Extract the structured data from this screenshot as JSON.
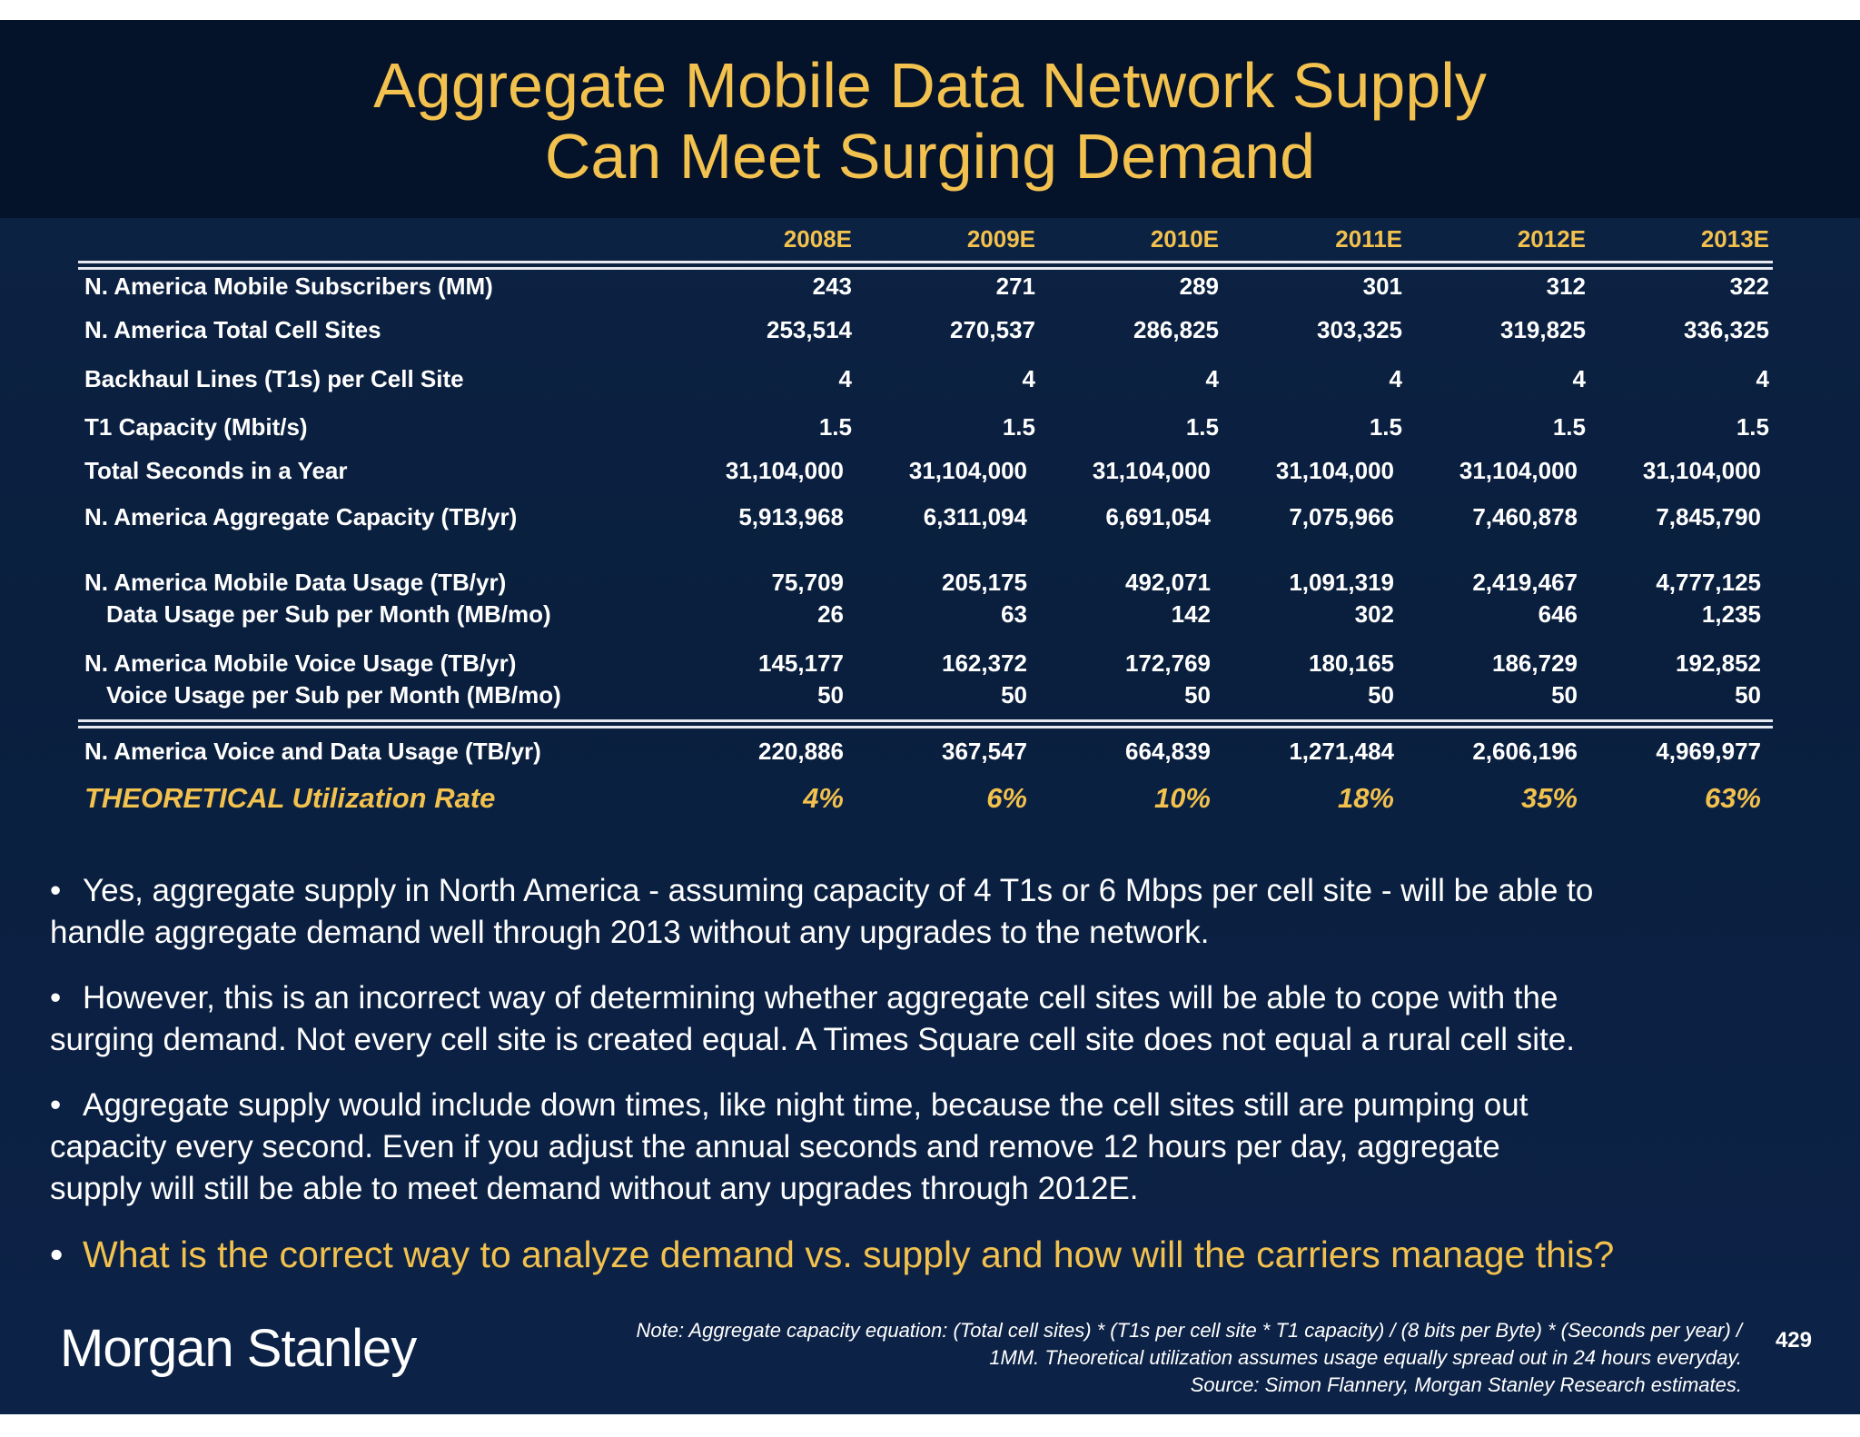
{
  "title": {
    "line1": "Aggregate Mobile Data Network Supply",
    "line2": "Can Meet Surging Demand"
  },
  "table": {
    "columns": [
      "2008E",
      "2009E",
      "2010E",
      "2011E",
      "2012E",
      "2013E"
    ],
    "rows": [
      {
        "label": "N. America Mobile Subscribers (MM)",
        "values": [
          "243",
          "271",
          "289",
          "301",
          "312",
          "322"
        ]
      },
      {
        "label": "N. America Total Cell Sites",
        "values": [
          "253,514",
          "270,537",
          "286,825",
          "303,325",
          "319,825",
          "336,325"
        ]
      },
      {
        "label": "Backhaul Lines (T1s) per Cell Site",
        "values": [
          "4",
          "4",
          "4",
          "4",
          "4",
          "4"
        ]
      },
      {
        "label": "T1 Capacity (Mbit/s)",
        "values": [
          "1.5",
          "1.5",
          "1.5",
          "1.5",
          "1.5",
          "1.5"
        ]
      },
      {
        "label": "Total Seconds in a Year",
        "values": [
          "31,104,000",
          "31,104,000",
          "31,104,000",
          "31,104,000",
          "31,104,000",
          "31,104,000"
        ]
      },
      {
        "label": "N. America Aggregate Capacity (TB/yr)",
        "values": [
          "5,913,968",
          "6,311,094",
          "6,691,054",
          "7,075,966",
          "7,460,878",
          "7,845,790"
        ]
      },
      {
        "label": "N. America Mobile Data Usage (TB/yr)",
        "values": [
          "75,709",
          "205,175",
          "492,071",
          "1,091,319",
          "2,419,467",
          "4,777,125"
        ]
      },
      {
        "label": "Data Usage per Sub per Month (MB/mo)",
        "values": [
          "26",
          "63",
          "142",
          "302",
          "646",
          "1,235"
        ]
      },
      {
        "label": "N. America Mobile Voice Usage (TB/yr)",
        "values": [
          "145,177",
          "162,372",
          "172,769",
          "180,165",
          "186,729",
          "192,852"
        ]
      },
      {
        "label": "Voice Usage per Sub per Month (MB/mo)",
        "values": [
          "50",
          "50",
          "50",
          "50",
          "50",
          "50"
        ]
      },
      {
        "label": "N. America Voice and Data Usage (TB/yr)",
        "values": [
          "220,886",
          "367,547",
          "664,839",
          "1,271,484",
          "2,606,196",
          "4,969,977"
        ]
      },
      {
        "label": "THEORETICAL Utilization Rate",
        "values": [
          "4%",
          "6%",
          "10%",
          "18%",
          "35%",
          "63%"
        ]
      }
    ]
  },
  "bullets": [
    {
      "dot": "•",
      "line1": "Yes, aggregate supply in North America - assuming capacity of 4 T1s or 6 Mbps per cell site - will be able to",
      "line2": "handle aggregate demand well through 2013 without any upgrades to the network."
    },
    {
      "dot": "•",
      "line1": "However, this is an incorrect way of determining whether aggregate cell sites will be able to cope with the",
      "line2": "surging demand.  Not every cell site is created equal.  A Times Square cell site does not equal a rural cell site."
    },
    {
      "dot": "•",
      "line1": "Aggregate supply would include down times, like night time, because the cell sites still are pumping out",
      "line2": "capacity every second.  Even if you adjust the annual seconds and remove 12 hours per day, aggregate",
      "line3": "supply will still be able to meet demand without any upgrades through 2012E."
    },
    {
      "dot": "•",
      "line1": "What is the correct way to analyze demand vs. supply and how will the carriers manage this?"
    }
  ],
  "footer": {
    "logo": "Morgan Stanley",
    "note_line1": "Note: Aggregate capacity equation: (Total cell sites) * (T1s per cell site * T1 capacity) / (8 bits per Byte) * (Seconds per year) /",
    "note_line2": "1MM. Theoretical utilization assumes usage equally spread out in 24 hours everyday.",
    "note_line3": "Source: Simon Flannery, Morgan Stanley Research estimates.",
    "page_number": "429"
  },
  "colors": {
    "title": "#f2c14e",
    "background": "#0b2040",
    "title_band": "#04122a",
    "text": "#ffffff"
  }
}
